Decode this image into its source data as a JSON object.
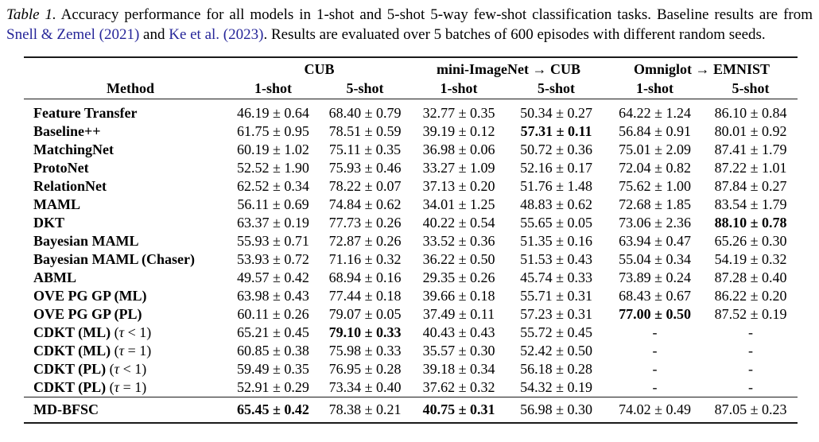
{
  "colors": {
    "link": "#262699",
    "rule": "#1a1a1a",
    "text": "#000000"
  },
  "caption": {
    "segments": [
      {
        "t": "Table 1.",
        "s": "italic"
      },
      {
        "t": " Accuracy performance for all models in 1-shot and 5-shot 5-way few-shot classification tasks. Baseline results are from ",
        "s": "normal"
      },
      {
        "t": "Snell & Zemel (2021)",
        "s": "link"
      },
      {
        "t": " and ",
        "s": "normal"
      },
      {
        "t": "Ke et al. (2023)",
        "s": "link"
      },
      {
        "t": ". Results are evaluated over 5 batches of 600 episodes with different random seeds.",
        "s": "normal"
      }
    ]
  },
  "table": {
    "method_header": "Method",
    "groups": [
      "CUB",
      "mini-ImageNet → CUB",
      "Omniglot → EMNIST"
    ],
    "shot_headers": [
      "1-shot",
      "5-shot",
      "1-shot",
      "5-shot",
      "1-shot",
      "5-shot"
    ],
    "rows": [
      {
        "method": [
          {
            "t": "Feature Transfer",
            "s": "b"
          }
        ],
        "values": [
          {
            "t": "46.19 ± 0.64"
          },
          {
            "t": "68.40 ± 0.79"
          },
          {
            "t": "32.77 ± 0.35"
          },
          {
            "t": "50.34 ± 0.27"
          },
          {
            "t": "64.22 ± 1.24"
          },
          {
            "t": "86.10 ± 0.84"
          }
        ]
      },
      {
        "method": [
          {
            "t": "Baseline++",
            "s": "b"
          }
        ],
        "values": [
          {
            "t": "61.75 ± 0.95"
          },
          {
            "t": "78.51 ± 0.59"
          },
          {
            "t": "39.19 ± 0.12"
          },
          {
            "t": "57.31 ± 0.11",
            "b": true
          },
          {
            "t": "56.84 ± 0.91"
          },
          {
            "t": "80.01 ± 0.92"
          }
        ]
      },
      {
        "method": [
          {
            "t": "MatchingNet",
            "s": "b"
          }
        ],
        "values": [
          {
            "t": "60.19 ± 1.02"
          },
          {
            "t": "75.11 ± 0.35"
          },
          {
            "t": "36.98 ± 0.06"
          },
          {
            "t": "50.72 ± 0.36"
          },
          {
            "t": "75.01 ± 2.09"
          },
          {
            "t": "87.41 ± 1.79"
          }
        ]
      },
      {
        "method": [
          {
            "t": "ProtoNet",
            "s": "b"
          }
        ],
        "values": [
          {
            "t": "52.52 ± 1.90"
          },
          {
            "t": "75.93 ± 0.46"
          },
          {
            "t": "33.27 ± 1.09"
          },
          {
            "t": "52.16 ± 0.17"
          },
          {
            "t": "72.04 ± 0.82"
          },
          {
            "t": "87.22 ± 1.01"
          }
        ]
      },
      {
        "method": [
          {
            "t": "RelationNet",
            "s": "b"
          }
        ],
        "values": [
          {
            "t": "62.52 ± 0.34"
          },
          {
            "t": "78.22 ± 0.07"
          },
          {
            "t": "37.13 ± 0.20"
          },
          {
            "t": "51.76 ± 1.48"
          },
          {
            "t": "75.62 ± 1.00"
          },
          {
            "t": "87.84 ± 0.27"
          }
        ]
      },
      {
        "method": [
          {
            "t": "MAML",
            "s": "b"
          }
        ],
        "values": [
          {
            "t": "56.11 ± 0.69"
          },
          {
            "t": "74.84 ± 0.62"
          },
          {
            "t": "34.01 ± 1.25"
          },
          {
            "t": "48.83 ± 0.62"
          },
          {
            "t": "72.68 ± 1.85"
          },
          {
            "t": "83.54 ± 1.79"
          }
        ]
      },
      {
        "method": [
          {
            "t": "DKT",
            "s": "b"
          }
        ],
        "values": [
          {
            "t": "63.37 ± 0.19"
          },
          {
            "t": "77.73 ± 0.26"
          },
          {
            "t": "40.22 ± 0.54"
          },
          {
            "t": "55.65 ± 0.05"
          },
          {
            "t": "73.06 ± 2.36"
          },
          {
            "t": "88.10 ± 0.78",
            "b": true
          }
        ]
      },
      {
        "method": [
          {
            "t": "Bayesian MAML",
            "s": "b"
          }
        ],
        "values": [
          {
            "t": "55.93 ± 0.71"
          },
          {
            "t": "72.87 ± 0.26"
          },
          {
            "t": "33.52 ± 0.36"
          },
          {
            "t": "51.35 ± 0.16"
          },
          {
            "t": "63.94 ± 0.47"
          },
          {
            "t": "65.26 ± 0.30"
          }
        ]
      },
      {
        "method": [
          {
            "t": "Bayesian MAML (Chaser)",
            "s": "b"
          }
        ],
        "values": [
          {
            "t": "53.93 ± 0.72"
          },
          {
            "t": "71.16 ± 0.32"
          },
          {
            "t": "36.22 ± 0.50"
          },
          {
            "t": "51.53 ± 0.43"
          },
          {
            "t": "55.04 ± 0.34"
          },
          {
            "t": "54.19 ± 0.32"
          }
        ]
      },
      {
        "method": [
          {
            "t": "ABML",
            "s": "b"
          }
        ],
        "values": [
          {
            "t": "49.57 ± 0.42"
          },
          {
            "t": "68.94 ± 0.16"
          },
          {
            "t": "29.35 ± 0.26"
          },
          {
            "t": "45.74 ± 0.33"
          },
          {
            "t": "73.89 ± 0.24"
          },
          {
            "t": "87.28 ± 0.40"
          }
        ]
      },
      {
        "method": [
          {
            "t": "OVE PG GP (ML)",
            "s": "b"
          }
        ],
        "values": [
          {
            "t": "63.98 ± 0.43"
          },
          {
            "t": "77.44 ± 0.18"
          },
          {
            "t": "39.66 ± 0.18"
          },
          {
            "t": "55.71 ± 0.31"
          },
          {
            "t": "68.43 ± 0.67"
          },
          {
            "t": "86.22 ± 0.20"
          }
        ]
      },
      {
        "method": [
          {
            "t": "OVE PG GP (PL)",
            "s": "b"
          }
        ],
        "values": [
          {
            "t": "60.11 ± 0.26"
          },
          {
            "t": "79.07 ± 0.05"
          },
          {
            "t": "37.49 ± 0.11"
          },
          {
            "t": "57.23 ± 0.31"
          },
          {
            "t": "77.00 ± 0.50",
            "b": true
          },
          {
            "t": "87.52 ± 0.19"
          }
        ]
      },
      {
        "method": [
          {
            "t": "CDKT (ML) ",
            "s": "b"
          },
          {
            "t": "(",
            "s": "n"
          },
          {
            "t": "τ",
            "s": "i"
          },
          {
            "t": " < 1)",
            "s": "n"
          }
        ],
        "values": [
          {
            "t": "65.21 ± 0.45"
          },
          {
            "t": "79.10 ± 0.33",
            "b": true
          },
          {
            "t": "40.43 ± 0.43"
          },
          {
            "t": "55.72 ± 0.45"
          },
          {
            "t": "-"
          },
          {
            "t": "-"
          }
        ]
      },
      {
        "method": [
          {
            "t": "CDKT (ML) ",
            "s": "b"
          },
          {
            "t": "(",
            "s": "n"
          },
          {
            "t": "τ",
            "s": "i"
          },
          {
            "t": " = 1)",
            "s": "n"
          }
        ],
        "values": [
          {
            "t": "60.85 ± 0.38"
          },
          {
            "t": "75.98 ± 0.33"
          },
          {
            "t": "35.57 ± 0.30"
          },
          {
            "t": "52.42 ± 0.50"
          },
          {
            "t": "-"
          },
          {
            "t": "-"
          }
        ]
      },
      {
        "method": [
          {
            "t": "CDKT (PL) ",
            "s": "b"
          },
          {
            "t": "(",
            "s": "n"
          },
          {
            "t": "τ",
            "s": "i"
          },
          {
            "t": " < 1)",
            "s": "n"
          }
        ],
        "values": [
          {
            "t": "59.49 ± 0.35"
          },
          {
            "t": "76.95 ± 0.28"
          },
          {
            "t": "39.18 ± 0.34"
          },
          {
            "t": "56.18 ± 0.28"
          },
          {
            "t": "-"
          },
          {
            "t": "-"
          }
        ]
      },
      {
        "method": [
          {
            "t": "CDKT (PL) ",
            "s": "b"
          },
          {
            "t": "(",
            "s": "n"
          },
          {
            "t": "τ",
            "s": "i"
          },
          {
            "t": " = 1)",
            "s": "n"
          }
        ],
        "values": [
          {
            "t": "52.91 ± 0.29"
          },
          {
            "t": "73.34 ± 0.40"
          },
          {
            "t": "37.62 ± 0.32"
          },
          {
            "t": "54.32 ± 0.19"
          },
          {
            "t": "-"
          },
          {
            "t": "-"
          }
        ]
      }
    ],
    "final_row": {
      "method": [
        {
          "t": "MD-BFSC",
          "s": "b"
        }
      ],
      "values": [
        {
          "t": "65.45 ± 0.42",
          "b": true
        },
        {
          "t": "78.38 ± 0.21"
        },
        {
          "t": "40.75 ± 0.31",
          "b": true
        },
        {
          "t": "56.98 ± 0.30"
        },
        {
          "t": "74.02 ± 0.49"
        },
        {
          "t": "87.05 ± 0.23"
        }
      ]
    }
  }
}
